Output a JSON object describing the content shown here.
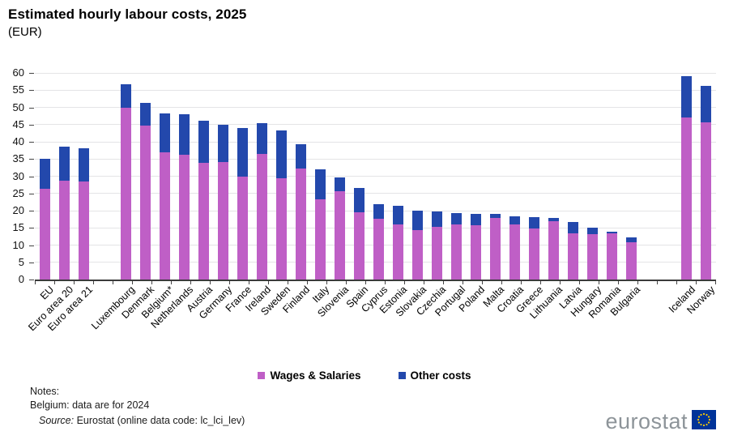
{
  "title": "Estimated hourly labour costs, 2025",
  "subtitle": "(EUR)",
  "chart_data": {
    "type": "bar",
    "stacked": true,
    "title": "Estimated hourly labour costs, 2025",
    "subtitle": "(EUR)",
    "unit": "EUR per hour",
    "ylim": [
      0,
      60
    ],
    "ytick_step": 5,
    "yticks": [
      0,
      5,
      10,
      15,
      20,
      25,
      30,
      35,
      40,
      45,
      50,
      55,
      60
    ],
    "grid": "horizontal-light",
    "legend_position": "bottom-center",
    "categories": [
      "EU",
      "Euro area 20",
      "Euro area 21",
      "Luxembourg",
      "Denmark",
      "Belgium*",
      "Netherlands",
      "Austria",
      "Germany",
      "France",
      "Ireland",
      "Sweden",
      "Finland",
      "Italy",
      "Slovenia",
      "Spain",
      "Cyprus",
      "Estonia",
      "Slovakia",
      "Czechia",
      "Portugal",
      "Poland",
      "Malta",
      "Croatia",
      "Greece",
      "Lithuania",
      "Latvia",
      "Hungary",
      "Romania",
      "Bulgaria",
      "Iceland",
      "Norway"
    ],
    "group_breaks_after": [
      "Euro area 21",
      "Bulgaria"
    ],
    "series": [
      {
        "name": "Wages & Salaries",
        "color": "#bf5fc6",
        "values": [
          26.3,
          28.8,
          28.4,
          49.9,
          44.7,
          37.0,
          36.3,
          33.9,
          34.2,
          29.8,
          36.4,
          29.5,
          32.3,
          23.2,
          25.6,
          19.6,
          17.6,
          15.9,
          14.4,
          15.2,
          16.0,
          15.7,
          17.8,
          16.0,
          14.9,
          17.0,
          13.3,
          13.1,
          13.3,
          10.8,
          47.0,
          45.7
        ]
      },
      {
        "name": "Other costs",
        "color": "#2348ac",
        "values": [
          8.7,
          9.8,
          9.7,
          6.9,
          6.7,
          11.2,
          11.7,
          12.3,
          10.8,
          14.2,
          9.0,
          13.7,
          7.1,
          8.8,
          4.1,
          7.0,
          4.4,
          5.6,
          5.6,
          4.6,
          3.4,
          3.3,
          1.2,
          2.3,
          3.3,
          1.0,
          3.3,
          1.9,
          0.6,
          1.4,
          12.0,
          10.5
        ]
      }
    ],
    "totals_estimated": [
      35.0,
      38.6,
      38.1,
      56.8,
      51.4,
      48.2,
      48.0,
      46.2,
      45.0,
      44.0,
      45.4,
      43.2,
      39.4,
      32.0,
      29.7,
      26.6,
      22.0,
      21.5,
      20.0,
      19.8,
      19.4,
      19.0,
      19.0,
      18.3,
      18.2,
      18.0,
      16.6,
      15.0,
      13.9,
      12.2,
      59.0,
      56.2
    ]
  },
  "notes": {
    "heading": "Notes:",
    "line": "Belgium: data are for 2024"
  },
  "source": {
    "label": "Source:",
    "text": " Eurostat (online data code: lc_lci_lev)"
  },
  "logo": {
    "text": "eurostat",
    "flag_blue": "#003399",
    "star_yellow": "#ffcc00"
  },
  "colors": {
    "wages": "#bf5fc6",
    "other": "#2348ac",
    "gridline": "#e4e4e6",
    "axis": "#3b3b3b"
  }
}
